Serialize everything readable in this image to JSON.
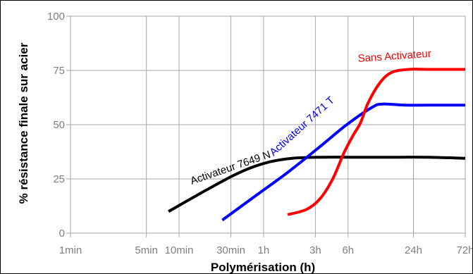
{
  "chart_data": {
    "type": "line",
    "title": "",
    "xlabel": "Polymérisation (h)",
    "ylabel": "% résistance finale sur acier",
    "x_scale": "log",
    "x_unit": "minutes",
    "xlim_minutes": [
      1,
      4320
    ],
    "ylim": [
      0,
      100
    ],
    "grid": true,
    "x_ticks": [
      {
        "label": "1min",
        "minutes": 1
      },
      {
        "label": "5min",
        "minutes": 5
      },
      {
        "label": "10min",
        "minutes": 10
      },
      {
        "label": "30min",
        "minutes": 30
      },
      {
        "label": "1h",
        "minutes": 60
      },
      {
        "label": "3h",
        "minutes": 180
      },
      {
        "label": "6h",
        "minutes": 360
      },
      {
        "label": "24h",
        "minutes": 1440
      },
      {
        "label": "72h",
        "minutes": 4320
      }
    ],
    "y_ticks": [
      0,
      25,
      50,
      75,
      100
    ],
    "series": [
      {
        "name": "Activateur 7649 N",
        "color": "#000000",
        "points": [
          {
            "x": 8,
            "y": 10
          },
          {
            "x": 12,
            "y": 15
          },
          {
            "x": 18,
            "y": 20
          },
          {
            "x": 30,
            "y": 26
          },
          {
            "x": 45,
            "y": 30
          },
          {
            "x": 70,
            "y": 33
          },
          {
            "x": 110,
            "y": 34.5
          },
          {
            "x": 200,
            "y": 35
          },
          {
            "x": 400,
            "y": 35
          },
          {
            "x": 1000,
            "y": 35
          },
          {
            "x": 2000,
            "y": 35
          },
          {
            "x": 4320,
            "y": 34.5
          }
        ]
      },
      {
        "name": "Activateur 7471 T",
        "color": "#0000ff",
        "points": [
          {
            "x": 25,
            "y": 6
          },
          {
            "x": 50,
            "y": 17
          },
          {
            "x": 100,
            "y": 28
          },
          {
            "x": 200,
            "y": 40
          },
          {
            "x": 350,
            "y": 50
          },
          {
            "x": 600,
            "y": 58
          },
          {
            "x": 750,
            "y": 59.5
          },
          {
            "x": 1200,
            "y": 59
          },
          {
            "x": 2000,
            "y": 59
          },
          {
            "x": 4320,
            "y": 59
          }
        ]
      },
      {
        "name": "Sans Activateur",
        "color": "#ff0000",
        "points": [
          {
            "x": 100,
            "y": 8.5
          },
          {
            "x": 150,
            "y": 11
          },
          {
            "x": 200,
            "y": 16
          },
          {
            "x": 260,
            "y": 25
          },
          {
            "x": 330,
            "y": 37
          },
          {
            "x": 400,
            "y": 45
          },
          {
            "x": 470,
            "y": 51
          },
          {
            "x": 550,
            "y": 60
          },
          {
            "x": 700,
            "y": 69
          },
          {
            "x": 900,
            "y": 74
          },
          {
            "x": 1300,
            "y": 75.5
          },
          {
            "x": 2000,
            "y": 75.5
          },
          {
            "x": 4320,
            "y": 75.5
          }
        ]
      }
    ],
    "annotations": [
      {
        "series": "Activateur 7649 N",
        "text": "Activateur 7649 N"
      },
      {
        "series": "Activateur 7471 T",
        "text": "Activateur 7471 T"
      },
      {
        "series": "Sans Activateur",
        "text": "Sans Activateur"
      }
    ]
  }
}
